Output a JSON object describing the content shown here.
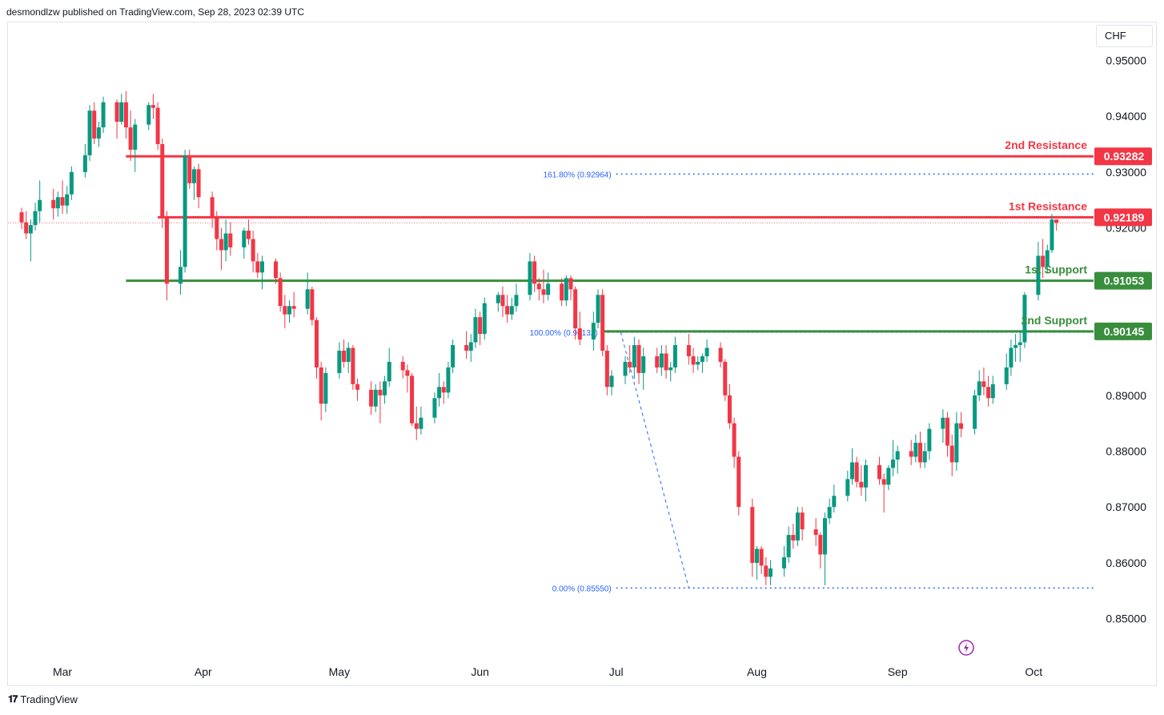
{
  "header": {
    "publisher_text": "desmondlzw published on TradingView.com, Sep 28, 2023 02:39 UTC"
  },
  "currency_label": "CHF",
  "footer": {
    "brand": "TradingView"
  },
  "colors": {
    "up": "#26a69a",
    "up_body": "#089981",
    "down": "#f23645",
    "resistance": "#f23645",
    "support": "#388e3c",
    "fib": "#2962ff"
  },
  "chart_data": {
    "type": "candlestick",
    "title": "",
    "xlabel": "",
    "ylabel": "",
    "ylim": [
      0.8435,
      0.9568
    ],
    "y_ticks": [
      "0.95000",
      "0.94000",
      "0.93000",
      "0.92000",
      "0.89000",
      "0.88000",
      "0.87000",
      "0.86000",
      "0.85000"
    ],
    "y_tick_values": [
      0.95,
      0.94,
      0.93,
      0.92,
      0.89,
      0.88,
      0.87,
      0.86,
      0.85
    ],
    "x_ticks": [
      "Mar",
      "Apr",
      "May",
      "Jun",
      "Jul",
      "Aug",
      "Sep",
      "Oct"
    ],
    "x_tick_dates": [
      "2023-03-01",
      "2023-04-01",
      "2023-05-01",
      "2023-06-01",
      "2023-07-01",
      "2023-08-01",
      "2023-09-01",
      "2023-10-01"
    ],
    "x_range": [
      "2023-02-17",
      "2023-10-23"
    ],
    "levels": [
      {
        "label": "2nd Resistance",
        "value": "0.93282",
        "kind": "resistance",
        "start": "2023-03-15"
      },
      {
        "label": "1st Resistance",
        "value": "0.92189",
        "kind": "resistance",
        "start": "2023-03-22"
      },
      {
        "label": "1st Support",
        "value": "0.91053",
        "kind": "support",
        "start": "2023-03-15"
      },
      {
        "label": "2nd Support",
        "value": "0.90145",
        "kind": "support",
        "start": "2023-06-28"
      }
    ],
    "fib_levels": [
      {
        "label": "161.80% (0.92964)",
        "value": 0.92964,
        "start": "2023-07-01"
      },
      {
        "label": "100.00% (0.90132)",
        "value": 0.90132,
        "start": "2023-06-28"
      },
      {
        "label": "0.00% (0.85550)",
        "value": 0.8555,
        "start": "2023-07-01"
      }
    ],
    "fib_swing": {
      "from": [
        "2023-07-02",
        0.9013
      ],
      "to": [
        "2023-07-17",
        0.8555
      ]
    },
    "last_price_line": 0.9209,
    "candles": [
      [
        "2023-02-20",
        0.9228,
        0.9236,
        0.9198,
        0.921
      ],
      [
        "2023-02-21",
        0.921,
        0.923,
        0.918,
        0.919
      ],
      [
        "2023-02-22",
        0.919,
        0.9215,
        0.914,
        0.9205
      ],
      [
        "2023-02-23",
        0.9205,
        0.9245,
        0.9195,
        0.923
      ],
      [
        "2023-02-24",
        0.923,
        0.9285,
        0.921,
        0.925
      ],
      [
        "2023-02-27",
        0.925,
        0.927,
        0.9215,
        0.9235
      ],
      [
        "2023-02-28",
        0.9235,
        0.9265,
        0.922,
        0.9255
      ],
      [
        "2023-03-01",
        0.9255,
        0.9285,
        0.9225,
        0.924
      ],
      [
        "2023-03-02",
        0.924,
        0.9275,
        0.9225,
        0.926
      ],
      [
        "2023-03-03",
        0.926,
        0.931,
        0.925,
        0.93
      ],
      [
        "2023-03-06",
        0.93,
        0.935,
        0.929,
        0.933
      ],
      [
        "2023-03-07",
        0.933,
        0.942,
        0.932,
        0.941
      ],
      [
        "2023-03-08",
        0.941,
        0.9425,
        0.935,
        0.936
      ],
      [
        "2023-03-09",
        0.936,
        0.939,
        0.9345,
        0.938
      ],
      [
        "2023-03-10",
        0.938,
        0.9435,
        0.937,
        0.9425
      ],
      [
        "2023-03-13",
        0.9425,
        0.943,
        0.936,
        0.939
      ],
      [
        "2023-03-14",
        0.939,
        0.944,
        0.9385,
        0.9425
      ],
      [
        "2023-03-15",
        0.9425,
        0.9445,
        0.936,
        0.938
      ],
      [
        "2023-03-16",
        0.938,
        0.941,
        0.932,
        0.934
      ],
      [
        "2023-03-17",
        0.934,
        0.9395,
        0.93,
        0.9385
      ],
      [
        "2023-03-20",
        0.9385,
        0.9425,
        0.9375,
        0.942
      ],
      [
        "2023-03-21",
        0.942,
        0.944,
        0.9395,
        0.9415
      ],
      [
        "2023-03-22",
        0.9415,
        0.9425,
        0.934,
        0.935
      ],
      [
        "2023-03-23",
        0.935,
        0.936,
        0.92,
        0.922
      ],
      [
        "2023-03-24",
        0.922,
        0.923,
        0.907,
        0.91
      ],
      [
        "2023-03-27",
        0.91,
        0.916,
        0.908,
        0.913
      ],
      [
        "2023-03-28",
        0.913,
        0.934,
        0.912,
        0.933
      ],
      [
        "2023-03-29",
        0.933,
        0.934,
        0.927,
        0.928
      ],
      [
        "2023-03-30",
        0.928,
        0.931,
        0.925,
        0.9305
      ],
      [
        "2023-03-31",
        0.9305,
        0.9315,
        0.9235,
        0.9255
      ],
      [
        "2023-04-03",
        0.9255,
        0.9265,
        0.92,
        0.922
      ],
      [
        "2023-04-04",
        0.922,
        0.923,
        0.916,
        0.918
      ],
      [
        "2023-04-05",
        0.918,
        0.92,
        0.9125,
        0.916
      ],
      [
        "2023-04-06",
        0.916,
        0.9215,
        0.914,
        0.919
      ],
      [
        "2023-04-07",
        0.919,
        0.921,
        0.915,
        0.9165
      ],
      [
        "2023-04-10",
        0.9165,
        0.92,
        0.9145,
        0.9195
      ],
      [
        "2023-04-11",
        0.9195,
        0.9215,
        0.917,
        0.918
      ],
      [
        "2023-04-12",
        0.918,
        0.9195,
        0.912,
        0.914
      ],
      [
        "2023-04-13",
        0.914,
        0.9155,
        0.911,
        0.912
      ],
      [
        "2023-04-14",
        0.912,
        0.915,
        0.909,
        0.914
      ],
      [
        "2023-04-17",
        0.914,
        0.9145,
        0.91,
        0.911
      ],
      [
        "2023-04-18",
        0.911,
        0.912,
        0.905,
        0.906
      ],
      [
        "2023-04-19",
        0.906,
        0.908,
        0.902,
        0.9045
      ],
      [
        "2023-04-20",
        0.9045,
        0.907,
        0.903,
        0.906
      ],
      [
        "2023-04-21",
        0.906,
        0.9085,
        0.904,
        0.9055
      ],
      [
        "2023-04-24",
        0.9055,
        0.912,
        0.9045,
        0.909
      ],
      [
        "2023-04-25",
        0.909,
        0.9095,
        0.9025,
        0.9035
      ],
      [
        "2023-04-26",
        0.9035,
        0.904,
        0.893,
        0.895
      ],
      [
        "2023-04-27",
        0.895,
        0.896,
        0.8855,
        0.8885
      ],
      [
        "2023-04-28",
        0.8885,
        0.895,
        0.887,
        0.894
      ],
      [
        "2023-05-01",
        0.894,
        0.8995,
        0.893,
        0.898
      ],
      [
        "2023-05-02",
        0.898,
        0.9,
        0.895,
        0.896
      ],
      [
        "2023-05-03",
        0.896,
        0.8995,
        0.894,
        0.8985
      ],
      [
        "2023-05-04",
        0.8985,
        0.899,
        0.891,
        0.892
      ],
      [
        "2023-05-05",
        0.892,
        0.893,
        0.889,
        0.891
      ],
      [
        "2023-05-08",
        0.891,
        0.8925,
        0.8865,
        0.888
      ],
      [
        "2023-05-09",
        0.888,
        0.892,
        0.887,
        0.891
      ],
      [
        "2023-05-10",
        0.891,
        0.8925,
        0.885,
        0.89
      ],
      [
        "2023-05-11",
        0.89,
        0.8935,
        0.8885,
        0.8925
      ],
      [
        "2023-05-12",
        0.8925,
        0.8985,
        0.8915,
        0.896
      ],
      [
        "2023-05-15",
        0.896,
        0.897,
        0.893,
        0.8945
      ],
      [
        "2023-05-16",
        0.8945,
        0.8955,
        0.8905,
        0.8935
      ],
      [
        "2023-05-17",
        0.8935,
        0.894,
        0.8845,
        0.885
      ],
      [
        "2023-05-18",
        0.885,
        0.888,
        0.882,
        0.884
      ],
      [
        "2023-05-19",
        0.884,
        0.888,
        0.883,
        0.886
      ],
      [
        "2023-05-22",
        0.886,
        0.8905,
        0.885,
        0.8895
      ],
      [
        "2023-05-23",
        0.8895,
        0.894,
        0.888,
        0.8915
      ],
      [
        "2023-05-24",
        0.8915,
        0.8925,
        0.8885,
        0.8905
      ],
      [
        "2023-05-25",
        0.8905,
        0.896,
        0.8895,
        0.895
      ],
      [
        "2023-05-26",
        0.895,
        0.9,
        0.894,
        0.899
      ],
      [
        "2023-05-29",
        0.899,
        0.9015,
        0.8965,
        0.898
      ],
      [
        "2023-05-30",
        0.898,
        0.901,
        0.896,
        0.8995
      ],
      [
        "2023-05-31",
        0.8995,
        0.9055,
        0.8985,
        0.904
      ],
      [
        "2023-06-01",
        0.904,
        0.905,
        0.899,
        0.901
      ],
      [
        "2023-06-02",
        0.901,
        0.9075,
        0.9,
        0.9065
      ],
      [
        "2023-06-05",
        0.9065,
        0.9085,
        0.905,
        0.908
      ],
      [
        "2023-06-06",
        0.908,
        0.9095,
        0.904,
        0.906
      ],
      [
        "2023-06-07",
        0.906,
        0.908,
        0.903,
        0.9045
      ],
      [
        "2023-06-08",
        0.9045,
        0.9075,
        0.9035,
        0.906
      ],
      [
        "2023-06-09",
        0.906,
        0.91,
        0.905,
        0.908
      ],
      [
        "2023-06-12",
        0.908,
        0.9155,
        0.907,
        0.914
      ],
      [
        "2023-06-13",
        0.914,
        0.915,
        0.9085,
        0.91
      ],
      [
        "2023-06-14",
        0.91,
        0.911,
        0.907,
        0.909
      ],
      [
        "2023-06-15",
        0.909,
        0.9125,
        0.9065,
        0.908
      ],
      [
        "2023-06-16",
        0.908,
        0.912,
        0.907,
        0.91
      ],
      [
        "2023-06-19",
        0.91,
        0.911,
        0.906,
        0.907
      ],
      [
        "2023-06-20",
        0.907,
        0.9115,
        0.906,
        0.911
      ],
      [
        "2023-06-21",
        0.911,
        0.9115,
        0.907,
        0.909
      ],
      [
        "2023-06-22",
        0.909,
        0.9095,
        0.9,
        0.902
      ],
      [
        "2023-06-23",
        0.902,
        0.905,
        0.899,
        0.9
      ],
      [
        "2023-06-26",
        0.9,
        0.905,
        0.898,
        0.903
      ],
      [
        "2023-06-27",
        0.903,
        0.909,
        0.902,
        0.908
      ],
      [
        "2023-06-28",
        0.908,
        0.909,
        0.897,
        0.898
      ],
      [
        "2023-06-29",
        0.898,
        0.899,
        0.89,
        0.8915
      ],
      [
        "2023-06-30",
        0.8915,
        0.8945,
        0.89,
        0.8935
      ],
      [
        "2023-07-03",
        0.8935,
        0.897,
        0.892,
        0.896
      ],
      [
        "2023-07-04",
        0.896,
        0.899,
        0.894,
        0.895
      ],
      [
        "2023-07-05",
        0.895,
        0.9005,
        0.893,
        0.899
      ],
      [
        "2023-07-06",
        0.899,
        0.9,
        0.892,
        0.894
      ],
      [
        "2023-07-07",
        0.894,
        0.8985,
        0.891,
        0.897
      ],
      [
        "2023-07-10",
        0.897,
        0.8985,
        0.894,
        0.895
      ],
      [
        "2023-07-11",
        0.895,
        0.899,
        0.8935,
        0.8975
      ],
      [
        "2023-07-12",
        0.8975,
        0.899,
        0.893,
        0.8945
      ],
      [
        "2023-07-13",
        0.8945,
        0.896,
        0.8925,
        0.895
      ],
      [
        "2023-07-14",
        0.895,
        0.9005,
        0.894,
        0.899
      ],
      [
        "2023-07-17",
        0.899,
        0.901,
        0.8955,
        0.897
      ],
      [
        "2023-07-18",
        0.897,
        0.8985,
        0.894,
        0.8955
      ],
      [
        "2023-07-19",
        0.8955,
        0.897,
        0.8945,
        0.896
      ],
      [
        "2023-07-20",
        0.896,
        0.8975,
        0.894,
        0.897
      ],
      [
        "2023-07-21",
        0.897,
        0.9,
        0.896,
        0.8985
      ],
      [
        "2023-07-24",
        0.8985,
        0.8995,
        0.895,
        0.896
      ],
      [
        "2023-07-25",
        0.896,
        0.8965,
        0.889,
        0.89
      ],
      [
        "2023-07-26",
        0.89,
        0.892,
        0.884,
        0.885
      ],
      [
        "2023-07-27",
        0.885,
        0.886,
        0.877,
        0.879
      ],
      [
        "2023-07-28",
        0.879,
        0.88,
        0.8685,
        0.87
      ],
      [
        "2023-07-31",
        0.87,
        0.8715,
        0.8575,
        0.86
      ],
      [
        "2023-08-01",
        0.86,
        0.863,
        0.857,
        0.8625
      ],
      [
        "2023-08-02",
        0.8625,
        0.863,
        0.858,
        0.8595
      ],
      [
        "2023-08-03",
        0.8595,
        0.861,
        0.856,
        0.8575
      ],
      [
        "2023-08-04",
        0.8575,
        0.8605,
        0.856,
        0.859
      ],
      [
        "2023-08-07",
        0.859,
        0.863,
        0.8575,
        0.861
      ],
      [
        "2023-08-08",
        0.861,
        0.8665,
        0.86,
        0.865
      ],
      [
        "2023-08-09",
        0.865,
        0.867,
        0.8625,
        0.864
      ],
      [
        "2023-08-10",
        0.864,
        0.87,
        0.863,
        0.869
      ],
      [
        "2023-08-11",
        0.869,
        0.87,
        0.864,
        0.866
      ],
      [
        "2023-08-14",
        0.866,
        0.868,
        0.863,
        0.865
      ],
      [
        "2023-08-15",
        0.865,
        0.8655,
        0.859,
        0.8615
      ],
      [
        "2023-08-16",
        0.8615,
        0.869,
        0.856,
        0.868
      ],
      [
        "2023-08-17",
        0.868,
        0.8715,
        0.867,
        0.87
      ],
      [
        "2023-08-18",
        0.87,
        0.874,
        0.869,
        0.872
      ],
      [
        "2023-08-21",
        0.872,
        0.8765,
        0.871,
        0.875
      ],
      [
        "2023-08-22",
        0.875,
        0.8805,
        0.874,
        0.878
      ],
      [
        "2023-08-23",
        0.878,
        0.879,
        0.8735,
        0.8745
      ],
      [
        "2023-08-24",
        0.8745,
        0.8775,
        0.872,
        0.8735
      ],
      [
        "2023-08-25",
        0.8735,
        0.8785,
        0.871,
        0.8775
      ],
      [
        "2023-08-28",
        0.8775,
        0.879,
        0.874,
        0.875
      ],
      [
        "2023-08-29",
        0.875,
        0.876,
        0.869,
        0.874
      ],
      [
        "2023-08-30",
        0.874,
        0.8775,
        0.873,
        0.877
      ],
      [
        "2023-08-31",
        0.877,
        0.882,
        0.8755,
        0.8785
      ],
      [
        "2023-09-01",
        0.8785,
        0.881,
        0.876,
        0.88
      ],
      [
        "2023-09-04",
        0.88,
        0.882,
        0.8775,
        0.879
      ],
      [
        "2023-09-05",
        0.879,
        0.883,
        0.878,
        0.8815
      ],
      [
        "2023-09-06",
        0.8815,
        0.8835,
        0.877,
        0.878
      ],
      [
        "2023-09-07",
        0.878,
        0.8815,
        0.877,
        0.88
      ],
      [
        "2023-09-08",
        0.88,
        0.885,
        0.8785,
        0.884
      ],
      [
        "2023-09-11",
        0.884,
        0.8875,
        0.8815,
        0.886
      ],
      [
        "2023-09-12",
        0.886,
        0.887,
        0.879,
        0.881
      ],
      [
        "2023-09-13",
        0.881,
        0.883,
        0.8755,
        0.878
      ],
      [
        "2023-09-14",
        0.878,
        0.887,
        0.8765,
        0.885
      ],
      [
        "2023-09-15",
        0.885,
        0.887,
        0.8825,
        0.884
      ],
      [
        "2023-09-18",
        0.884,
        0.891,
        0.883,
        0.89
      ],
      [
        "2023-09-19",
        0.89,
        0.8945,
        0.889,
        0.8925
      ],
      [
        "2023-09-20",
        0.8925,
        0.895,
        0.89,
        0.8915
      ],
      [
        "2023-09-21",
        0.8915,
        0.8935,
        0.888,
        0.8895
      ],
      [
        "2023-09-22",
        0.8895,
        0.8935,
        0.8885,
        0.892
      ],
      [
        "2023-09-25",
        0.892,
        0.8975,
        0.891,
        0.895
      ],
      [
        "2023-09-26",
        0.895,
        0.9,
        0.8935,
        0.8985
      ],
      [
        "2023-09-27",
        0.8985,
        0.901,
        0.896,
        0.899
      ],
      [
        "2023-09-28",
        0.899,
        0.9015,
        0.896,
        0.8995
      ],
      [
        "2023-09-29",
        0.8995,
        0.9085,
        0.8985,
        0.908
      ],
      [
        "2023-10-02",
        0.908,
        0.9175,
        0.907,
        0.915
      ],
      [
        "2023-10-03",
        0.915,
        0.918,
        0.911,
        0.913
      ],
      [
        "2023-10-04",
        0.913,
        0.917,
        0.912,
        0.916
      ],
      [
        "2023-10-05",
        0.916,
        0.9225,
        0.9155,
        0.9215
      ],
      [
        "2023-10-06",
        0.9215,
        0.9215,
        0.9195,
        0.9209
      ]
    ]
  }
}
